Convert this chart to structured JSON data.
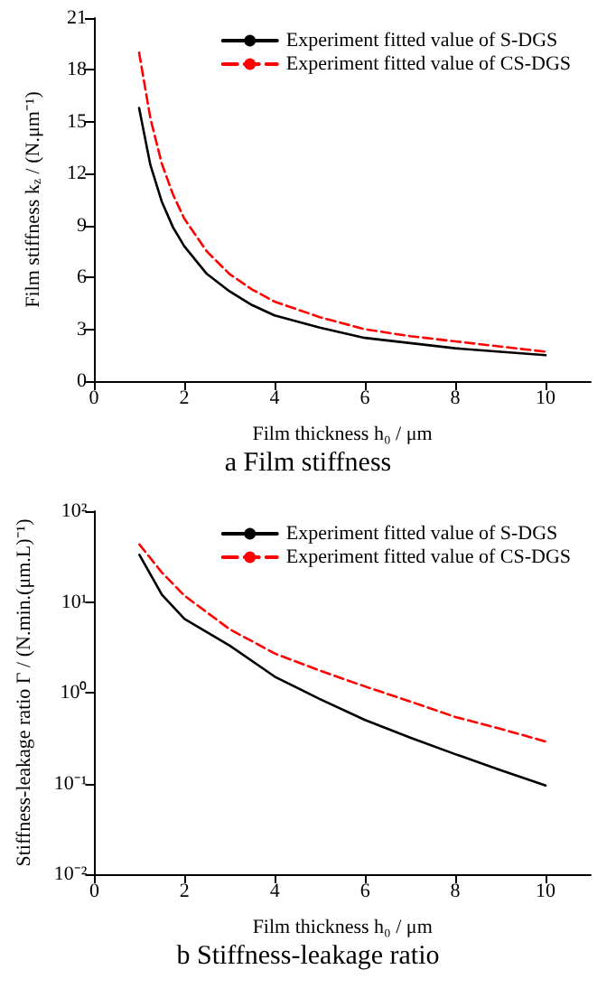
{
  "chart_data": [
    {
      "type": "line",
      "title": "a Film stiffness",
      "xlabel": "Film thickness h₀ / μm",
      "ylabel": "Film stiffness k$_{z}$ / (N.μm⁻¹)",
      "x": [
        1,
        1.25,
        1.5,
        1.75,
        2,
        2.5,
        3,
        3.5,
        4,
        5,
        6,
        7,
        8,
        9,
        10
      ],
      "series": [
        {
          "name": "Experiment fitted value of S-DGS",
          "color": "#000000",
          "line_style": "solid",
          "values": [
            15.8,
            12.5,
            10.4,
            8.9,
            7.8,
            6.2,
            5.2,
            4.4,
            3.8,
            3.1,
            2.5,
            2.2,
            1.9,
            1.7,
            1.5
          ]
        },
        {
          "name": "Experiment fitted value of CS-DGS",
          "color": "#ff0000",
          "line_style": "dashed",
          "values": [
            19,
            15.2,
            12.6,
            10.8,
            9.4,
            7.5,
            6.2,
            5.3,
            4.6,
            3.7,
            3.0,
            2.6,
            2.3,
            2.0,
            1.7
          ]
        }
      ],
      "xlim": [
        0,
        11
      ],
      "xticks": [
        0,
        2,
        4,
        6,
        8,
        10
      ],
      "ylim": [
        0,
        21
      ],
      "yticks": [
        0,
        3,
        6,
        9,
        12,
        15,
        18,
        21
      ],
      "legend": "top right",
      "grid": false,
      "marker": "none"
    },
    {
      "type": "line",
      "title": "b Stiffness-leakage ratio",
      "xlabel": "Film thickness h₀ / μm",
      "ylabel": "Stiffness-leakage ratio Γ / (N.min.(μm.L)⁻¹)",
      "x": [
        1,
        1.5,
        2,
        3,
        4,
        5,
        6,
        7,
        8,
        9,
        10
      ],
      "series": [
        {
          "name": "Experiment fitted value of S-DGS",
          "color": "#000000",
          "line_style": "solid",
          "values": [
            33,
            12,
            6.5,
            3.3,
            1.5,
            0.85,
            0.5,
            0.32,
            0.21,
            0.14,
            0.095
          ]
        },
        {
          "name": "Experiment fitted value of CS-DGS",
          "color": "#ff0000",
          "line_style": "dashed",
          "values": [
            43,
            21,
            11.7,
            5,
            2.7,
            1.75,
            1.17,
            0.8,
            0.54,
            0.4,
            0.29
          ]
        }
      ],
      "xlim": [
        0,
        11
      ],
      "xticks": [
        0,
        2,
        4,
        6,
        8,
        10
      ],
      "log": "y",
      "ylim": [
        0.01,
        100
      ],
      "yticks": [
        {
          "value": 0.01,
          "label": "10⁻²"
        },
        {
          "value": 0.1,
          "label": "10⁻¹"
        },
        {
          "value": 1,
          "label": "10⁰"
        },
        {
          "value": 10,
          "label": "10¹"
        },
        {
          "value": 100,
          "label": "10²"
        }
      ],
      "legend": "top right",
      "grid": false,
      "marker": "none"
    }
  ]
}
